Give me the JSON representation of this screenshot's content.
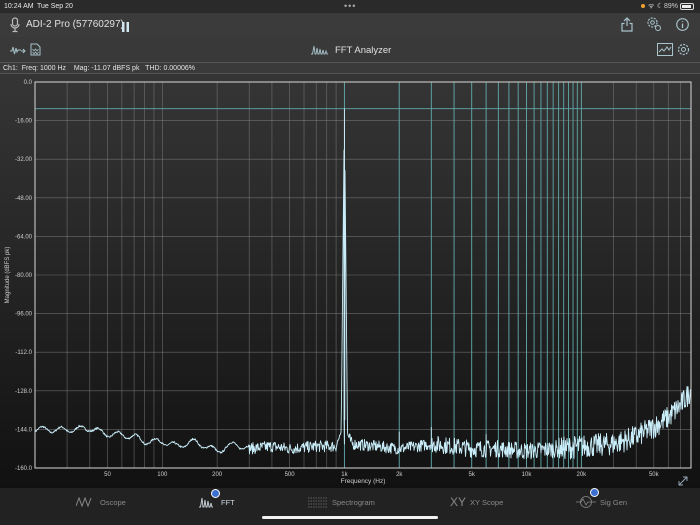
{
  "status_bar": {
    "time": "10:24 AM",
    "date": "Tue Sep 20",
    "battery": "89%",
    "battery_level": 0.89
  },
  "title_bar": {
    "device": "ADI-2 Pro (57760297)"
  },
  "toolbar": {
    "title": "FFT Analyzer"
  },
  "info_line": {
    "channel": "Ch1:",
    "freq": "Freq: 1000 Hz",
    "mag": "Mag: -11.07 dBFS pk",
    "thd": "THD: 0.00006%"
  },
  "colors": {
    "trace": "#c8ecf8",
    "harmonic_marker": "#5fa8aa",
    "grid": "#8a8a8a"
  },
  "chart_data": {
    "type": "line",
    "xlabel": "Frequency (Hz)",
    "ylabel": "Magnitude (dBFS pk)",
    "xscale": "log",
    "xlim": [
      20,
      80000
    ],
    "ylim": [
      -160,
      0
    ],
    "grid": true,
    "y_ticks": [
      "0.0",
      "-16.00",
      "-32.00",
      "-48.00",
      "-64.00",
      "-80.00",
      "-96.00",
      "-112.0",
      "-128.0",
      "-144.0",
      "-160.0"
    ],
    "y_tick_values": [
      0,
      -16,
      -32,
      -48,
      -64,
      -80,
      -96,
      -112,
      -128,
      -144,
      -160
    ],
    "x_ticks": [
      {
        "value": 50,
        "label": "50"
      },
      {
        "value": 100,
        "label": "100"
      },
      {
        "value": 200,
        "label": "200"
      },
      {
        "value": 500,
        "label": "500"
      },
      {
        "value": 1000,
        "label": "1k"
      },
      {
        "value": 2000,
        "label": "2k"
      },
      {
        "value": 5000,
        "label": "5k"
      },
      {
        "value": 10000,
        "label": "10k"
      },
      {
        "value": 20000,
        "label": "20k"
      },
      {
        "value": 50000,
        "label": "50k"
      }
    ],
    "peak_marker_db": -11.07,
    "harmonic_markers_hz": [
      1000,
      2000,
      3000,
      4000,
      5000,
      6000,
      7000,
      8000,
      9000,
      10000,
      11000,
      12000,
      13000,
      14000,
      15000,
      16000,
      17000,
      18000,
      19000,
      20000
    ],
    "series": [
      {
        "x": [
          20,
          30,
          40,
          50,
          60,
          70,
          80,
          100,
          120,
          150,
          200,
          250,
          300,
          400,
          500,
          700,
          900,
          960,
          1000,
          1040,
          1100,
          1500,
          2000,
          2500,
          3000,
          4000,
          5000,
          7000,
          10000,
          15000,
          20000,
          30000,
          40000,
          50000,
          60000,
          70000,
          80000
        ],
        "y": [
          -144,
          -144.2,
          -143.5,
          -146,
          -146.3,
          -147,
          -149,
          -149,
          -151,
          -149,
          -153,
          -150,
          -152,
          -151,
          -152,
          -151,
          -151,
          -145,
          -11.07,
          -146,
          -150,
          -151,
          -152,
          -151,
          -150,
          -151,
          -152,
          -152,
          -153,
          -152,
          -151,
          -150,
          -147,
          -143,
          -139,
          -134,
          -128
        ]
      }
    ]
  },
  "tabs": [
    {
      "label": "Oscope",
      "active": false
    },
    {
      "label": "FFT",
      "active": true
    },
    {
      "label": "Spectrogram",
      "active": false
    },
    {
      "label": "XY Scope",
      "active": false
    },
    {
      "label": "Sig Gen",
      "active": false
    }
  ]
}
